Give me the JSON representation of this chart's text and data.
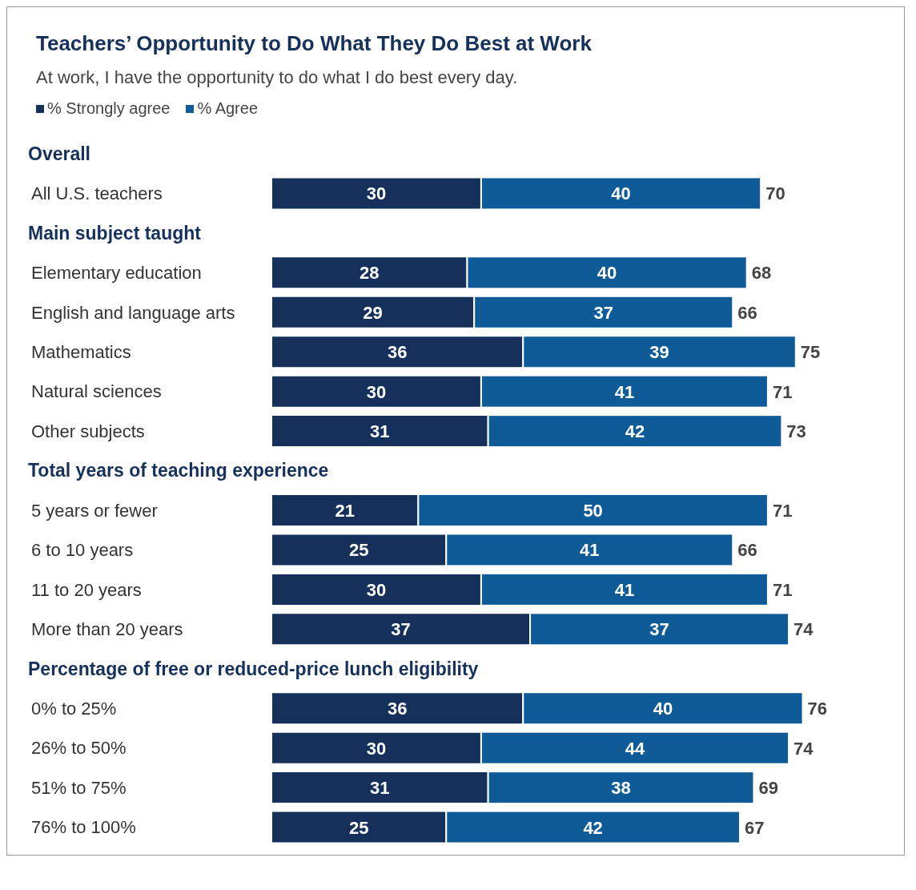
{
  "chart_data": {
    "type": "bar",
    "orientation": "horizontal",
    "stacked": true,
    "title": "Teachers’ Opportunity to Do What They Do Best at Work",
    "subtitle": "At work, I have the opportunity to do what I do best every day.",
    "legend": "top left",
    "data_labels": true,
    "categories": [
      "Overall",
      "All U.S. teachers",
      "Main subject taught",
      "Elementary education",
      "English and language arts",
      "Mathematics",
      "Natural sciences",
      "Other subjects",
      "Total years of teaching experience",
      "5 years or fewer",
      "6 to 10 years",
      "11 to 20 years",
      "More than 20 years",
      "Percentage of free or reduced-price lunch eligibility",
      "0% to 25%",
      "26% to 50%",
      "51% to 75%",
      "76% to 100%"
    ],
    "series": [
      {
        "name": "% Strongly agree",
        "color": "#15305a",
        "values": [
          null,
          30,
          null,
          28,
          29,
          36,
          30,
          31,
          null,
          21,
          25,
          30,
          37,
          null,
          36,
          30,
          31,
          25
        ]
      },
      {
        "name": "% Agree",
        "color": "#0f5b98",
        "values": [
          null,
          40,
          null,
          40,
          37,
          39,
          41,
          42,
          null,
          50,
          41,
          41,
          37,
          null,
          40,
          44,
          38,
          42
        ]
      }
    ],
    "totals": [
      null,
      "70",
      null,
      "68",
      "66",
      "75",
      "71",
      "73",
      null,
      "71",
      "66",
      "71",
      "74",
      null,
      "76",
      "74",
      "69",
      "67"
    ]
  }
}
